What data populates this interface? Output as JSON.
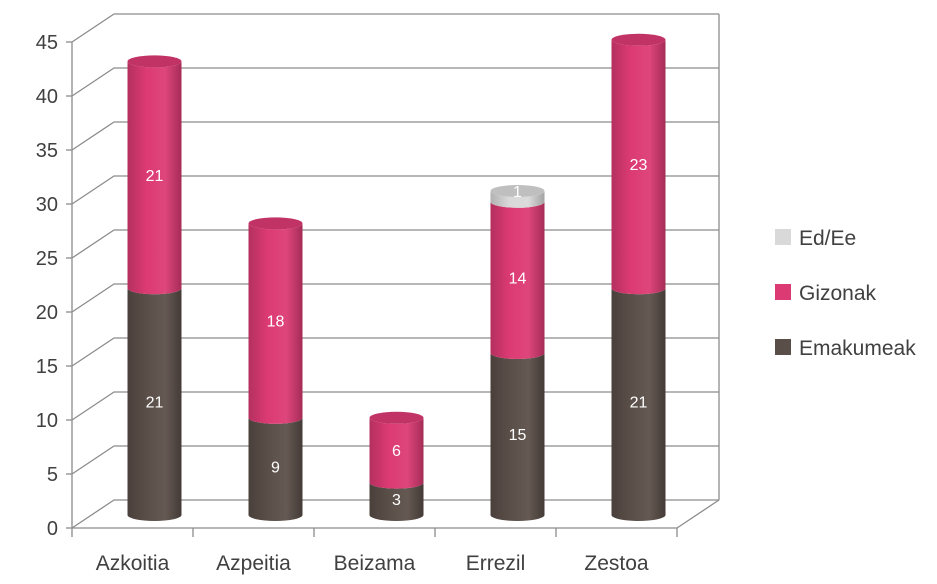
{
  "chart_data": {
    "type": "bar",
    "stacked": true,
    "style": "3d-cylinder",
    "categories": [
      "Azkoitia",
      "Azpeitia",
      "Beizama",
      "Errezil",
      "Zestoa"
    ],
    "series": [
      {
        "name": "Emakumeak",
        "values": [
          21,
          9,
          3,
          15,
          21
        ],
        "color": "#5a4e48"
      },
      {
        "name": "Gizonak",
        "values": [
          21,
          18,
          6,
          14,
          23
        ],
        "color": "#dc3a73"
      },
      {
        "name": "Ed/Ee",
        "values": [
          0,
          0,
          0,
          1,
          0
        ],
        "color": "#d9d9d9"
      }
    ],
    "ylim": [
      0,
      45
    ],
    "yticks": [
      "0",
      "5",
      "10",
      "15",
      "20",
      "25",
      "30",
      "35",
      "40",
      "45"
    ],
    "grid": true,
    "legend": {
      "position": "right",
      "order": [
        "Ed/Ee",
        "Gizonak",
        "Emakumeak"
      ]
    }
  }
}
